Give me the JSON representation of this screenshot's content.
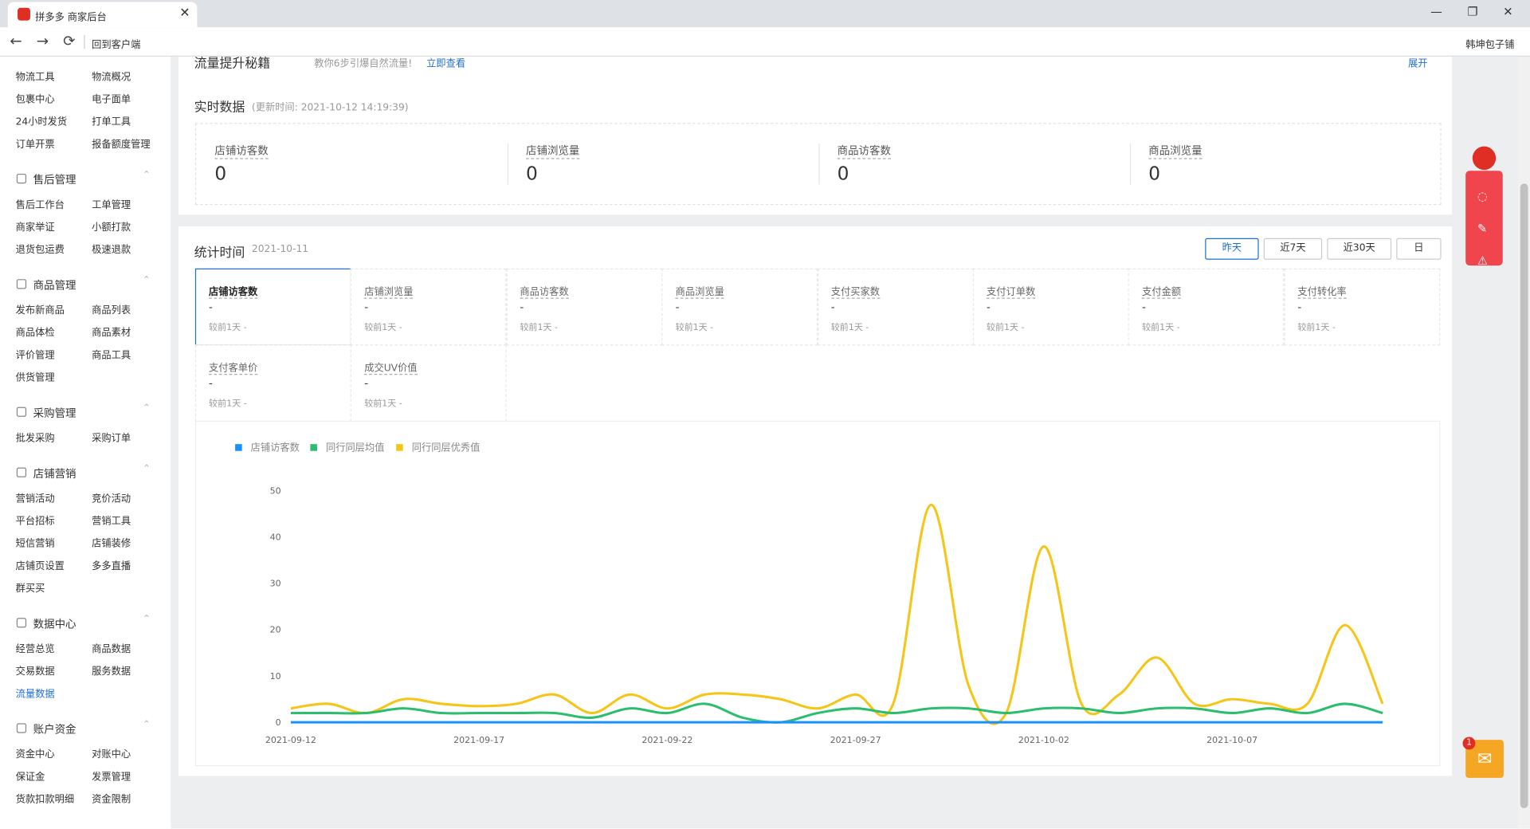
{
  "browser": {
    "tab_title": "拼多多 商家后台",
    "back_to_client": "回到客户端",
    "shop_name": "韩坤包子铺"
  },
  "sidebar": {
    "top_items": [
      "物流工具",
      "物流概况",
      "包裹中心",
      "电子面单",
      "24小时发货",
      "打单工具",
      "订单开票",
      "报备额度管理"
    ],
    "groups": [
      {
        "title": "售后管理",
        "items": [
          "售后工作台",
          "工单管理",
          "商家举证",
          "小额打款",
          "退货包运费",
          "极速退款"
        ]
      },
      {
        "title": "商品管理",
        "items": [
          "发布新商品",
          "商品列表",
          "商品体检",
          "商品素材",
          "评价管理",
          "商品工具",
          "供货管理"
        ]
      },
      {
        "title": "采购管理",
        "items": [
          "批发采购",
          "采购订单"
        ]
      },
      {
        "title": "店铺营销",
        "items": [
          "营销活动",
          "竞价活动",
          "平台招标",
          "营销工具",
          "短信营销",
          "店铺装修",
          "店铺页设置",
          "多多直播",
          "群买买"
        ]
      },
      {
        "title": "数据中心",
        "items": [
          "经营总览",
          "商品数据",
          "交易数据",
          "服务数据",
          "流量数据"
        ]
      },
      {
        "title": "账户资金",
        "items": [
          "资金中心",
          "对账中心",
          "保证金",
          "发票管理",
          "货款扣款明细",
          "资金限制"
        ]
      }
    ]
  },
  "banner": {
    "title": "流量提升秘籍",
    "tip": "教你6步引爆自然流量!",
    "link": "立即查看",
    "expand": "展开"
  },
  "realtime": {
    "title": "实时数据",
    "update_time": "(更新时间: 2021-10-12 14:19:39)",
    "cards": [
      {
        "label": "店铺访客数",
        "value": 0
      },
      {
        "label": "店铺浏览量",
        "value": 0
      },
      {
        "label": "商品访客数",
        "value": 0
      },
      {
        "label": "商品浏览量",
        "value": 0
      }
    ]
  },
  "stats": {
    "title": "统计时间",
    "date": "2021-10-11",
    "ranges": [
      "昨天",
      "近7天",
      "近30天",
      "日"
    ],
    "metrics": [
      {
        "label": "店铺访客数",
        "value": "-",
        "compare": "较前1天 -"
      },
      {
        "label": "店铺浏览量",
        "value": "-",
        "compare": "较前1天 -"
      },
      {
        "label": "商品访客数",
        "value": "-",
        "compare": "较前1天 -"
      },
      {
        "label": "商品浏览量",
        "value": "-",
        "compare": "较前1天 -"
      },
      {
        "label": "支付买家数",
        "value": "-",
        "compare": "较前1天 -"
      },
      {
        "label": "支付订单数",
        "value": "-",
        "compare": "较前1天 -"
      },
      {
        "label": "支付金额",
        "value": "-",
        "compare": "较前1天 -"
      },
      {
        "label": "支付转化率",
        "value": "-",
        "compare": "较前1天 -"
      },
      {
        "label": "支付客单价",
        "value": "-",
        "compare": "较前1天 -"
      },
      {
        "label": "成交UV价值",
        "value": "-",
        "compare": "较前1天 -"
      }
    ]
  },
  "chart_data": {
    "type": "line",
    "x": [
      "2021-09-12",
      "2021-09-13",
      "2021-09-14",
      "2021-09-15",
      "2021-09-16",
      "2021-09-17",
      "2021-09-18",
      "2021-09-19",
      "2021-09-20",
      "2021-09-21",
      "2021-09-22",
      "2021-09-23",
      "2021-09-24",
      "2021-09-25",
      "2021-09-26",
      "2021-09-27",
      "2021-09-28",
      "2021-09-29",
      "2021-09-30",
      "2021-10-01",
      "2021-10-02",
      "2021-10-03",
      "2021-10-04",
      "2021-10-05",
      "2021-10-06",
      "2021-10-07",
      "2021-10-08",
      "2021-10-09",
      "2021-10-10",
      "2021-10-11"
    ],
    "xticks": [
      "2021-09-12",
      "2021-09-17",
      "2021-09-22",
      "2021-09-27",
      "2021-10-02",
      "2021-10-07"
    ],
    "ylim": [
      0,
      50
    ],
    "yticks": [
      0,
      10,
      20,
      30,
      40,
      50
    ],
    "grid": false,
    "series": [
      {
        "name": "店铺访客数",
        "color": "#1890ff",
        "values": [
          0,
          0,
          0,
          0,
          0,
          0,
          0,
          0,
          0,
          0,
          0,
          0,
          0,
          0,
          0,
          0,
          0,
          0,
          0,
          0,
          0,
          0,
          0,
          0,
          0,
          0,
          0,
          0,
          0,
          0
        ]
      },
      {
        "name": "同行同层均值",
        "color": "#2dbd6e",
        "values": [
          2,
          2,
          2,
          3,
          2,
          2,
          2,
          2,
          1,
          3,
          2,
          4,
          1,
          0,
          2,
          3,
          2,
          3,
          3,
          2,
          3,
          3,
          2,
          3,
          3,
          2,
          3,
          2,
          4,
          2
        ]
      },
      {
        "name": "同行同层优秀值",
        "color": "#f5c518",
        "values": [
          3,
          4,
          2,
          5,
          4,
          3.5,
          4,
          6,
          2,
          6,
          3,
          6,
          6,
          5,
          3,
          6,
          4,
          47,
          8,
          2,
          38,
          4,
          6,
          14,
          4,
          5,
          4,
          4,
          21,
          4
        ]
      }
    ]
  },
  "notification_count": 1
}
